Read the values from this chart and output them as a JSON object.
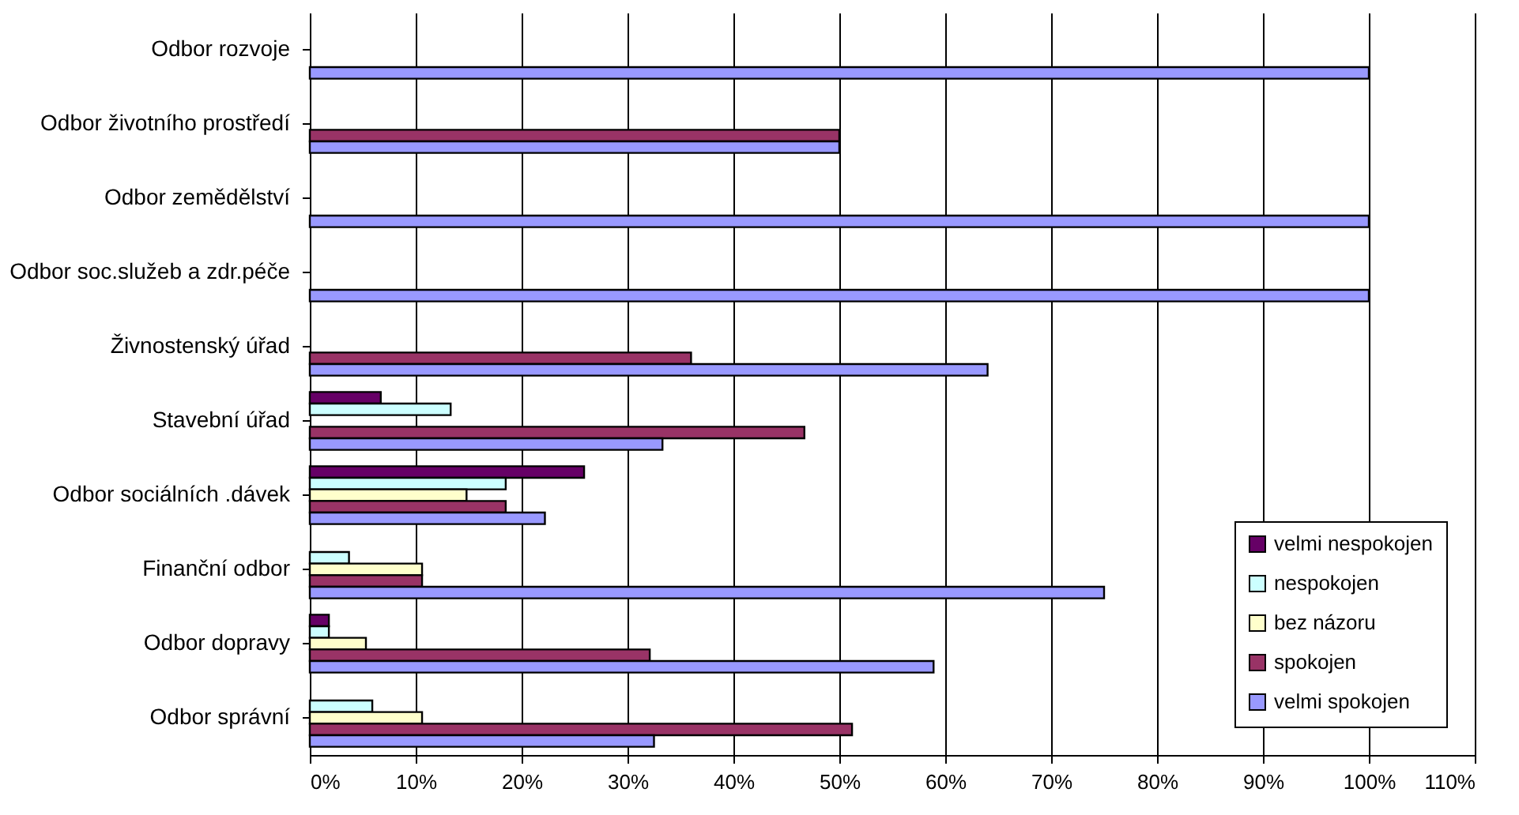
{
  "chart_data": {
    "type": "bar",
    "orientation": "horizontal",
    "categories": [
      "Odbor rozvoje",
      "Odbor životního prostředí",
      "Odbor zemědělství",
      "Odbor soc.služeb a zdr.péče",
      "Živnostenský úřad",
      "Stavební úřad",
      "Odbor sociálních .dávek",
      "Finanční odbor",
      "Odbor dopravy",
      "Odbor správní"
    ],
    "series": [
      {
        "name": "velmi nespokojen",
        "color": "#660066",
        "values": [
          null,
          null,
          null,
          null,
          null,
          6.7,
          25.9,
          null,
          1.8,
          null
        ]
      },
      {
        "name": "nespokojen",
        "color": "#ccffff",
        "values": [
          null,
          null,
          null,
          null,
          null,
          13.3,
          18.5,
          3.7,
          1.8,
          5.9
        ]
      },
      {
        "name": "bez názoru",
        "color": "#ffffcc",
        "values": [
          null,
          null,
          null,
          null,
          null,
          null,
          14.8,
          10.6,
          5.3,
          10.6
        ]
      },
      {
        "name": "spokojen",
        "color": "#993366",
        "values": [
          null,
          50,
          null,
          null,
          36,
          46.7,
          18.5,
          10.6,
          32.1,
          51.2
        ]
      },
      {
        "name": "velmi spokojen",
        "color": "#9999ff",
        "values": [
          100,
          50,
          100,
          100,
          64,
          33.3,
          22.2,
          75,
          58.9,
          32.5
        ]
      }
    ],
    "xlim": [
      0,
      110
    ],
    "xticks": [
      {
        "value": 0,
        "label": "0%"
      },
      {
        "value": 10,
        "label": "10%"
      },
      {
        "value": 20,
        "label": "20%"
      },
      {
        "value": 30,
        "label": "30%"
      },
      {
        "value": 40,
        "label": "40%"
      },
      {
        "value": 50,
        "label": "50%"
      },
      {
        "value": 60,
        "label": "60%"
      },
      {
        "value": 70,
        "label": "70%"
      },
      {
        "value": 80,
        "label": "80%"
      },
      {
        "value": 90,
        "label": "90%"
      },
      {
        "value": 100,
        "label": "100%"
      },
      {
        "value": 110,
        "label": "110%"
      }
    ],
    "grid": "x",
    "legend": "bottom right"
  }
}
